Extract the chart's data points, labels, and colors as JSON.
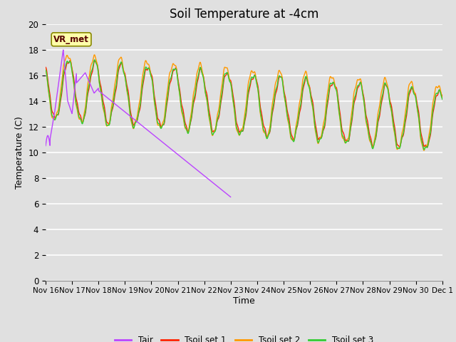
{
  "title": "Soil Temperature at -4cm",
  "xlabel": "Time",
  "ylabel": "Temperature (C)",
  "ylim": [
    0,
    20
  ],
  "xlim": [
    0,
    360
  ],
  "plot_bg_color": "#e0e0e0",
  "grid_color": "white",
  "colors": {
    "Tair": "#bb44ff",
    "Tsoil1": "#ff2200",
    "Tsoil2": "#ff9900",
    "Tsoil3": "#33cc33"
  },
  "legend_labels": [
    "Tair",
    "Tsoil set 1",
    "Tsoil set 2",
    "Tsoil set 3"
  ],
  "annotation_text": "VR_met",
  "xtick_labels": [
    "Nov 16",
    "Nov 17",
    "Nov 18",
    "Nov 19",
    "Nov 20",
    "Nov 21",
    "Nov 22",
    "Nov 23",
    "Nov 24",
    "Nov 25",
    "Nov 26",
    "Nov 27",
    "Nov 28",
    "Nov 29",
    "Nov 30",
    "Dec 1"
  ],
  "xtick_positions": [
    0,
    24,
    48,
    72,
    96,
    120,
    144,
    168,
    192,
    216,
    240,
    264,
    288,
    312,
    336,
    360
  ]
}
